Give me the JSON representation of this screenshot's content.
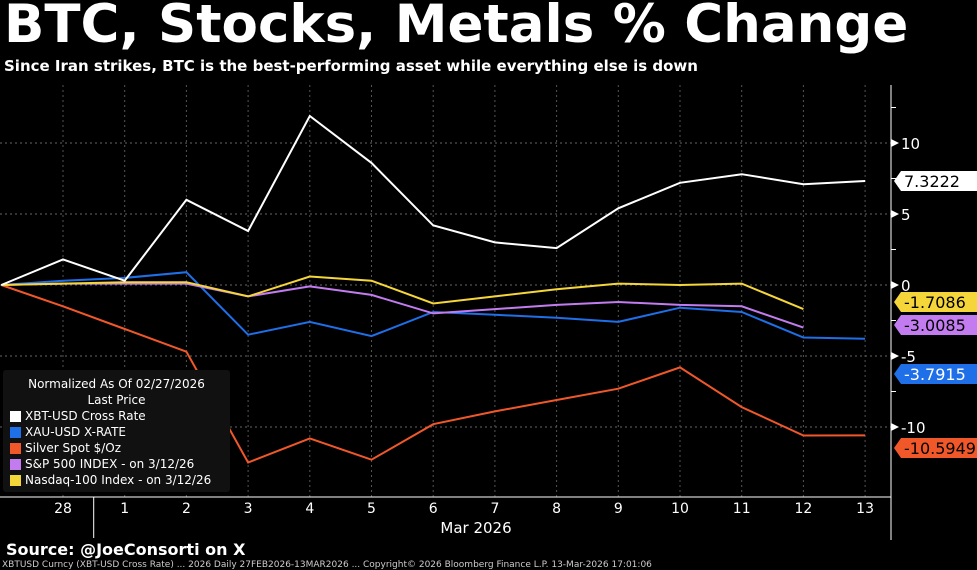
{
  "title": "BTC, Stocks, Metals % Change",
  "subtitle": "Since Iran strikes, BTC is the best-performing asset while everything else is down",
  "source": "Source: @JoeConsorti on X",
  "footer": "XBTUSD Curncy (XBT-USD Cross Rate) ... 2026 Daily 27FEB2026-13MAR2026 ... Copyright© 2026 Bloomberg Finance L.P. 13-Mar-2026 17:01:06",
  "chart_data": {
    "type": "line",
    "title": "BTC, Stocks, Metals % Change",
    "xlabel": "Mar 2026",
    "ylabel": "",
    "x": [
      "27",
      "28",
      "1",
      "2",
      "3",
      "4",
      "5",
      "6",
      "7",
      "8",
      "9",
      "10",
      "11",
      "12",
      "13"
    ],
    "x_tick_labels": [
      "28",
      "1",
      "2",
      "3",
      "4",
      "5",
      "6",
      "7",
      "8",
      "9",
      "10",
      "11",
      "12",
      "13"
    ],
    "y_ticks": [
      10,
      5,
      0,
      -5,
      -10
    ],
    "ylim": [
      -14,
      14
    ],
    "grid": true,
    "legend_placement": "bottom-left",
    "legend_header": [
      "Normalized As Of 02/27/2026",
      "Last Price"
    ],
    "series": [
      {
        "name": "XBT-USD Cross Rate",
        "color": "#ffffff",
        "values": [
          0,
          1.8,
          0.3,
          6.0,
          3.8,
          11.9,
          8.6,
          4.2,
          3.0,
          2.6,
          5.4,
          7.2,
          7.8,
          7.1,
          7.3222
        ],
        "last_label": "7.3222",
        "label_text": "#000000"
      },
      {
        "name": "XAU-USD X-RATE",
        "color": "#1f6fe8",
        "values": [
          0,
          0.3,
          0.5,
          0.9,
          -3.5,
          -2.6,
          -3.6,
          -1.9,
          -2.1,
          -2.3,
          -2.6,
          -1.6,
          -1.9,
          -3.7,
          -3.7915
        ],
        "last_label": "-3.7915",
        "label_text": "#ffffff"
      },
      {
        "name": "Silver Spot $/Oz",
        "color": "#f0582a",
        "values": [
          0,
          -1.5,
          -3.1,
          -4.7,
          -12.5,
          -10.8,
          -12.3,
          -9.8,
          -8.9,
          -8.1,
          -7.3,
          -5.8,
          -8.6,
          -10.6,
          -10.5949
        ],
        "last_label": "-10.5949",
        "label_text": "#000000"
      },
      {
        "name": "S&P 500 INDEX -  on 3/12/26",
        "color": "#c27cf0",
        "values": [
          0,
          0.1,
          0.1,
          0.1,
          -0.8,
          -0.1,
          -0.7,
          -2.0,
          -1.7,
          -1.4,
          -1.2,
          -1.4,
          -1.5,
          -3.0,
          null
        ],
        "last_label": "-3.0085",
        "label_text": "#000000"
      },
      {
        "name": "Nasdaq-100 Index -  on 3/12/26",
        "color": "#f5d63a",
        "values": [
          0,
          0.1,
          0.2,
          0.2,
          -0.8,
          0.6,
          0.3,
          -1.3,
          -0.8,
          -0.3,
          0.1,
          0.0,
          0.1,
          -1.7,
          null
        ],
        "last_label": "-1.7086",
        "label_text": "#000000"
      }
    ]
  }
}
